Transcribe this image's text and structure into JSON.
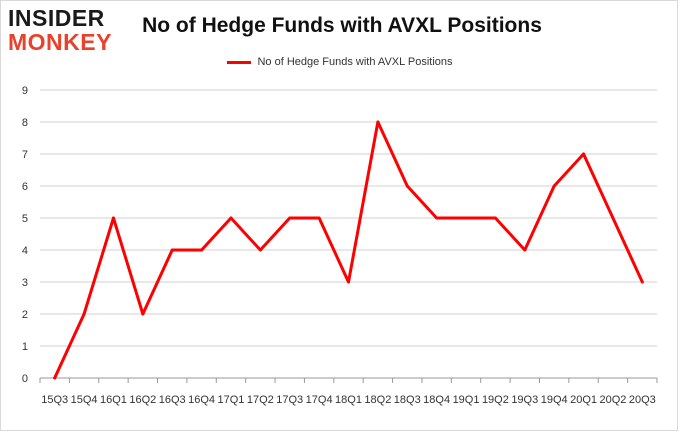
{
  "brand": {
    "line1": "INSIDER",
    "line2": "MONKEY"
  },
  "chart_data": {
    "type": "line",
    "title": "No of Hedge Funds with AVXL Positions",
    "xlabel": "",
    "ylabel": "",
    "ylim": [
      0,
      9
    ],
    "yticks": [
      0,
      1,
      2,
      3,
      4,
      5,
      6,
      7,
      8,
      9
    ],
    "grid": true,
    "legend": "top-center",
    "categories": [
      "15Q3",
      "15Q4",
      "16Q1",
      "16Q2",
      "16Q3",
      "16Q4",
      "17Q1",
      "17Q2",
      "17Q3",
      "17Q4",
      "18Q1",
      "18Q2",
      "18Q3",
      "18Q4",
      "19Q1",
      "19Q2",
      "19Q3",
      "19Q4",
      "20Q1",
      "20Q2",
      "20Q3"
    ],
    "series": [
      {
        "name": "No of Hedge Funds with AVXL Positions",
        "color": "#ff0000",
        "values": [
          0,
          2,
          5,
          2,
          4,
          4,
          5,
          4,
          5,
          5,
          3,
          8,
          6,
          5,
          5,
          5,
          4,
          6,
          7,
          5,
          3
        ]
      }
    ]
  }
}
